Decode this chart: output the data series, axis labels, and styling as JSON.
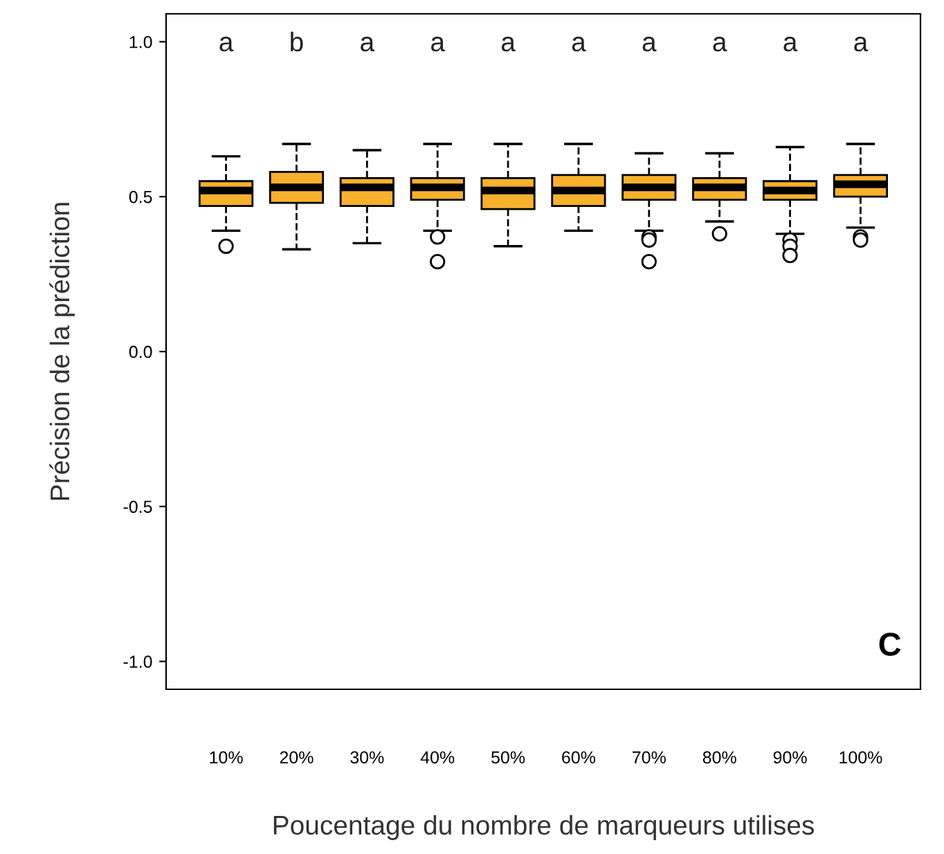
{
  "chart_data": {
    "type": "box",
    "xlabel": "Poucentage du nombre de marqueurs utilises",
    "ylabel": "Précision de la prédiction",
    "categories": [
      "10%",
      "20%",
      "30%",
      "40%",
      "50%",
      "60%",
      "70%",
      "80%",
      "90%",
      "100%"
    ],
    "color": "#f8b12c",
    "ylim": [
      -1.09,
      1.09
    ],
    "yticks": [
      {
        "value": -1,
        "label": "-1.0"
      },
      {
        "value": -0.5,
        "label": "-0.5"
      },
      {
        "value": 0,
        "label": "0.0"
      },
      {
        "value": 0.5,
        "label": "0.5"
      },
      {
        "value": 1,
        "label": "1.0"
      }
    ],
    "grid": false,
    "boxes": [
      {
        "low": 0.39,
        "q1": 0.47,
        "median": 0.52,
        "q3": 0.55,
        "high": 0.63,
        "outliers": [
          0.34
        ]
      },
      {
        "low": 0.33,
        "q1": 0.48,
        "median": 0.53,
        "q3": 0.58,
        "high": 0.67
      },
      {
        "low": 0.35,
        "q1": 0.47,
        "median": 0.53,
        "q3": 0.56,
        "high": 0.65
      },
      {
        "low": 0.39,
        "q1": 0.49,
        "median": 0.53,
        "q3": 0.56,
        "high": 0.67,
        "outliers": [
          0.37,
          0.29
        ]
      },
      {
        "low": 0.34,
        "q1": 0.46,
        "median": 0.52,
        "q3": 0.56,
        "high": 0.67
      },
      {
        "low": 0.39,
        "q1": 0.47,
        "median": 0.52,
        "q3": 0.57,
        "high": 0.67
      },
      {
        "low": 0.39,
        "q1": 0.49,
        "median": 0.53,
        "q3": 0.57,
        "high": 0.64,
        "outliers": [
          0.37,
          0.36,
          0.29
        ]
      },
      {
        "low": 0.42,
        "q1": 0.49,
        "median": 0.53,
        "q3": 0.56,
        "high": 0.64,
        "outliers": [
          0.38
        ]
      },
      {
        "low": 0.38,
        "q1": 0.49,
        "median": 0.52,
        "q3": 0.55,
        "high": 0.66,
        "outliers": [
          0.36,
          0.34,
          0.31
        ]
      },
      {
        "low": 0.4,
        "q1": 0.5,
        "median": 0.54,
        "q3": 0.57,
        "high": 0.67,
        "outliers": [
          0.37,
          0.36
        ]
      }
    ],
    "annotations": [
      "a",
      "b",
      "a",
      "a",
      "a",
      "a",
      "a",
      "a",
      "a",
      "a",
      "C"
    ]
  }
}
